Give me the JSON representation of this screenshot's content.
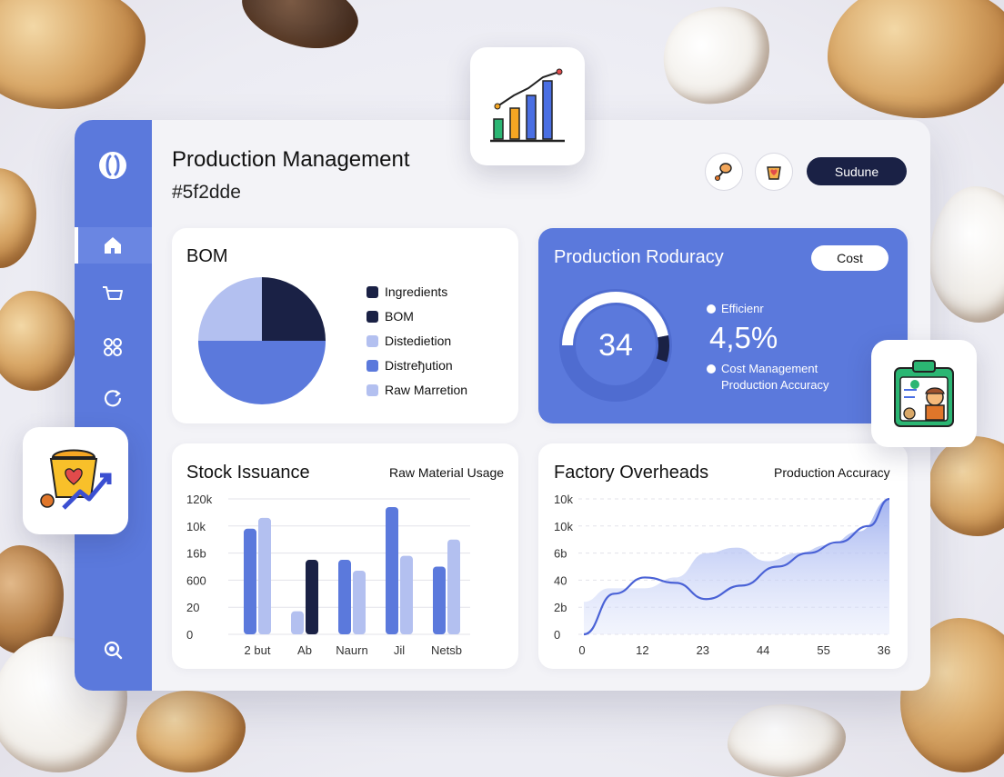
{
  "header": {
    "title": "Production Management",
    "subtitle": "#5f2dde",
    "action_button": "Sudune"
  },
  "sidebar": {
    "logo": "bread-logo-icon",
    "items": [
      {
        "icon": "home-icon",
        "active": true
      },
      {
        "icon": "cart-icon",
        "active": false
      },
      {
        "icon": "apps-icon",
        "active": false
      },
      {
        "icon": "refresh-icon",
        "active": false
      }
    ],
    "bottom_icon": "search-icon"
  },
  "bom_card": {
    "title": "BOM",
    "legend": [
      {
        "label": "Ingredients",
        "color": "#1a2145"
      },
      {
        "label": "BOM",
        "color": "#1a2145"
      },
      {
        "label": "Distediet​ion",
        "color": "#b3c0f0"
      },
      {
        "label": "Distreђution",
        "color": "#5b79dc"
      },
      {
        "label": "Raw Marretion",
        "color": "#b3c0f0"
      }
    ]
  },
  "accuracy_card": {
    "title": "Production Roduracy",
    "badge": "Cost",
    "gauge_value": "34",
    "gauge_fraction": 0.55,
    "legend_top": "Efficienr",
    "big_value": "4,5%",
    "legend_bottom_1": "Cost Management",
    "legend_bottom_2": "Production Accuracy"
  },
  "stock_card": {
    "title": "Stock Issuance",
    "note": "Raw Material Usage"
  },
  "overheads_card": {
    "title": "Factory Overheads",
    "note": "Production Accuracy"
  },
  "chart_data": [
    {
      "type": "pie",
      "title": "BOM",
      "slices": [
        {
          "label": "dark",
          "value": 25,
          "color": "#1a2145"
        },
        {
          "label": "blue",
          "value": 50,
          "color": "#5b79dc"
        },
        {
          "label": "light",
          "value": 25,
          "color": "#b3c0f0"
        }
      ]
    },
    {
      "type": "bar",
      "title": "Stock Issuance",
      "categories": [
        "2 but",
        "Ab",
        "Naurn",
        "Jil",
        "Netsb"
      ],
      "y_ticks": [
        "120k",
        "10k",
        "16b",
        "600",
        "20",
        "0"
      ],
      "ylim": [
        0,
        5
      ],
      "series": [
        {
          "values": [
            3.9,
            0.85,
            2.75,
            4.7,
            2.5
          ],
          "colors": [
            "#5b79dc",
            "#b3c0f0",
            "#5b79dc",
            "#5b79dc",
            "#5b79dc"
          ]
        },
        {
          "values": [
            4.3,
            2.75,
            2.35,
            2.9,
            3.5
          ],
          "colors": [
            "#b3c0f0",
            "#1a2145",
            "#b3c0f0",
            "#b3c0f0",
            "#b3c0f0"
          ]
        }
      ]
    },
    {
      "type": "area",
      "title": "Factory Overheads",
      "x_ticks": [
        "0",
        "12",
        "23",
        "44",
        "55",
        "36"
      ],
      "y_ticks": [
        "10k",
        "10k",
        "6b",
        "40",
        "2b",
        "0"
      ],
      "ylim": [
        0,
        5
      ],
      "line": [
        [
          0,
          0
        ],
        [
          0.6,
          1.5
        ],
        [
          1.2,
          2.1
        ],
        [
          1.8,
          1.9
        ],
        [
          2.4,
          1.3
        ],
        [
          3.1,
          1.8
        ],
        [
          3.8,
          2.5
        ],
        [
          4.4,
          3.0
        ],
        [
          5.0,
          3.4
        ],
        [
          5.6,
          4.0
        ],
        [
          6.0,
          5.0
        ]
      ],
      "area": [
        [
          0,
          1.2
        ],
        [
          0.5,
          1.7
        ],
        [
          1.2,
          1.7
        ],
        [
          1.8,
          2.1
        ],
        [
          2.4,
          3.0
        ],
        [
          3.0,
          3.2
        ],
        [
          3.6,
          2.7
        ],
        [
          4.2,
          3.0
        ],
        [
          4.8,
          3.3
        ],
        [
          5.4,
          3.8
        ],
        [
          6.0,
          5.0
        ]
      ]
    }
  ]
}
